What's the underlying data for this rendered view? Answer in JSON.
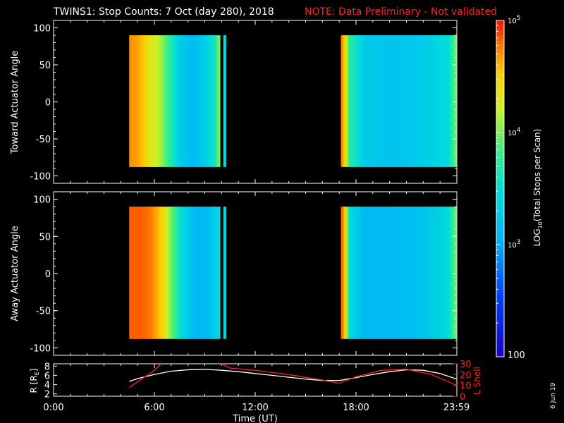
{
  "title": "TWINS1: Stop Counts:  7 Oct (day 280), 2018",
  "note": "NOTE: Data Preliminary - Not validated",
  "date_stamp": "6 Jun 19",
  "colors": {
    "background": "#000000",
    "axes": "#ffffff",
    "note": "#ff2020",
    "r_line": "#ffffff",
    "l_line": "#ff2020"
  },
  "chart_data": [
    {
      "type": "heatmap",
      "name": "toward",
      "ylabel": "Toward Actuator Angle",
      "ylim": [
        -110,
        110
      ],
      "yticks": [
        100,
        50,
        0,
        -50,
        -100
      ],
      "y_data_range": [
        -88,
        90
      ],
      "time_blocks": [
        {
          "start": 4.5,
          "end": 9.9,
          "profile": [
            [
              4.5,
              4.3
            ],
            [
              4.9,
              4.25
            ],
            [
              5.3,
              4.15
            ],
            [
              5.7,
              3.9
            ],
            [
              6.3,
              3.75
            ],
            [
              6.9,
              3.4
            ],
            [
              7.5,
              3.1
            ],
            [
              8.3,
              3.0
            ],
            [
              9.0,
              3.1
            ],
            [
              9.6,
              3.3
            ],
            [
              9.9,
              3.7
            ]
          ]
        },
        {
          "start": 10.1,
          "end": 10.25,
          "profile": [
            [
              10.1,
              3.2
            ],
            [
              10.25,
              3.2
            ]
          ]
        },
        {
          "start": 17.1,
          "end": 23.95,
          "profile": [
            [
              17.1,
              4.4
            ],
            [
              17.3,
              4.1
            ],
            [
              17.6,
              3.4
            ],
            [
              18.5,
              3.1
            ],
            [
              20.0,
              3.05
            ],
            [
              22.0,
              3.1
            ],
            [
              23.5,
              3.2
            ],
            [
              23.95,
              3.6
            ]
          ]
        }
      ]
    },
    {
      "type": "heatmap",
      "name": "away",
      "ylabel": "Away Actuator Angle",
      "ylim": [
        -110,
        110
      ],
      "yticks": [
        100,
        50,
        0,
        -50,
        -100
      ],
      "y_data_range": [
        -88,
        90
      ],
      "time_blocks": [
        {
          "start": 4.5,
          "end": 9.9,
          "profile": [
            [
              4.5,
              4.5
            ],
            [
              5.2,
              4.5
            ],
            [
              5.8,
              4.35
            ],
            [
              6.4,
              4.1
            ],
            [
              7.0,
              3.6
            ],
            [
              7.6,
              3.2
            ],
            [
              8.4,
              3.0
            ],
            [
              9.2,
              3.0
            ],
            [
              9.9,
              3.2
            ]
          ]
        },
        {
          "start": 10.1,
          "end": 10.25,
          "profile": [
            [
              10.1,
              3.2
            ],
            [
              10.25,
              3.2
            ]
          ]
        },
        {
          "start": 17.1,
          "end": 23.95,
          "profile": [
            [
              17.1,
              4.5
            ],
            [
              17.3,
              4.2
            ],
            [
              17.6,
              3.2
            ],
            [
              18.5,
              3.0
            ],
            [
              20.0,
              3.0
            ],
            [
              22.0,
              3.05
            ],
            [
              23.5,
              3.2
            ],
            [
              23.95,
              3.6
            ]
          ]
        }
      ]
    },
    {
      "type": "line",
      "name": "orbit",
      "ylabel": "R [R",
      "ylabel_sub": "E",
      "ylabel_end": "]",
      "y2label": "L Shell",
      "ylim": [
        1.5,
        8.5
      ],
      "yticks": [
        8,
        6,
        4,
        2
      ],
      "y2lim": [
        0,
        30
      ],
      "y2ticks": [
        30,
        20,
        10,
        0
      ],
      "series": [
        {
          "name": "R",
          "axis": "left",
          "x": [
            4.5,
            5.0,
            6.0,
            7.0,
            8.0,
            9.0,
            10.0,
            11.0,
            12.0,
            13.0,
            14.0,
            15.0,
            16.0,
            17.0,
            18.0,
            19.0,
            20.0,
            21.0,
            22.0,
            23.0,
            24.0
          ],
          "y": [
            4.7,
            5.3,
            6.2,
            6.9,
            7.2,
            7.3,
            7.1,
            6.8,
            6.4,
            6.0,
            5.6,
            5.2,
            4.9,
            4.9,
            5.5,
            6.2,
            6.8,
            7.2,
            7.1,
            6.4,
            5.2
          ]
        },
        {
          "name": "L Shell",
          "axis": "right",
          "x": [
            4.5,
            6.0,
            6.4
          ],
          "y": [
            8,
            24,
            30
          ]
        },
        {
          "name": "L Shell",
          "axis": "right",
          "x": [
            10.0,
            10.5,
            12.0,
            14.0,
            16.0,
            17.0,
            18.0,
            19.5,
            21.0,
            22.5,
            24.0
          ],
          "y": [
            30,
            26,
            24,
            20,
            15,
            12,
            18,
            24,
            25,
            20,
            10
          ]
        }
      ],
      "colorbar": {
        "label": "LOG",
        "label_sub": "10",
        "label_rest": "(Total Stops per Scan)",
        "range_log": [
          2,
          5
        ],
        "ticks": [
          {
            "value": 5,
            "base": "10",
            "exp": "5"
          },
          {
            "value": 4,
            "base": "10",
            "exp": "4"
          },
          {
            "value": 3,
            "base": "10",
            "exp": "3"
          },
          {
            "value": 2,
            "text": "100"
          }
        ]
      },
      "xlabel": "Time (UT)",
      "xlim": [
        0,
        24
      ],
      "xticks": [
        {
          "value": 0,
          "label": "0:00"
        },
        {
          "value": 6,
          "label": "6:00"
        },
        {
          "value": 12,
          "label": "12:00"
        },
        {
          "value": 18,
          "label": "18:00"
        },
        {
          "value": 23.98,
          "label": "23:59"
        }
      ]
    }
  ]
}
